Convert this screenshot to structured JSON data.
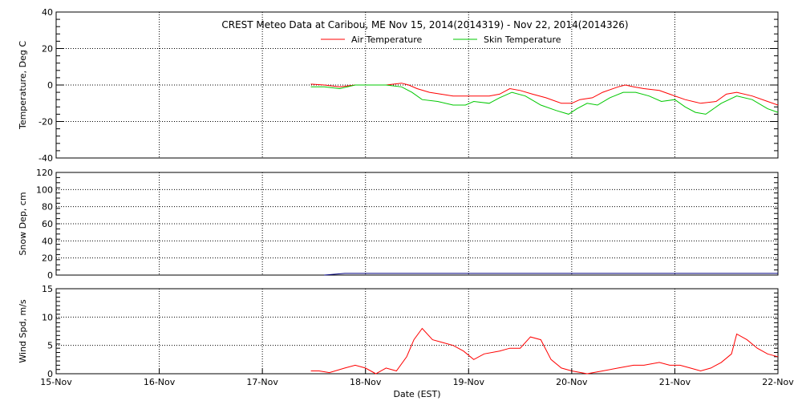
{
  "chart_data": {
    "type": "line",
    "title": "CREST Meteo Data at Caribou, ME   Nov 15, 2014(2014319) - Nov 22, 2014(2014326)",
    "xlabel": "Date (EST)",
    "x_ticks": [
      "15-Nov",
      "16-Nov",
      "17-Nov",
      "18-Nov",
      "19-Nov",
      "20-Nov",
      "21-Nov",
      "22-Nov"
    ],
    "xlim": [
      0,
      7
    ],
    "colors": {
      "air": "#ff0000",
      "skin": "#00c800",
      "snow": "#000080",
      "wind": "#ff0000",
      "frame": "#000000",
      "grid": "#000000"
    },
    "panels": [
      {
        "id": "temperature",
        "ylabel": "Temperature, Deg C",
        "ylim": [
          -40,
          40
        ],
        "y_ticks": [
          "40",
          "20",
          "0",
          "-20",
          "-40"
        ],
        "grid": true,
        "legend": {
          "placement": "top-center"
        },
        "series": [
          {
            "name": "Air Temperature",
            "color": "#ff0000",
            "x": [
              2.47,
              2.6,
              2.75,
              2.9,
              3.0,
              3.2,
              3.35,
              3.42,
              3.5,
              3.62,
              3.85,
              4.0,
              4.2,
              4.3,
              4.4,
              4.5,
              4.62,
              4.75,
              4.9,
              5.0,
              5.08,
              5.2,
              5.3,
              5.45,
              5.52,
              5.6,
              5.7,
              5.85,
              5.95,
              6.1,
              6.25,
              6.4,
              6.5,
              6.6,
              6.75,
              6.9,
              7.0
            ],
            "values": [
              0.5,
              0,
              -1,
              0,
              0,
              0,
              1,
              0,
              -2,
              -4,
              -6,
              -6,
              -6,
              -5,
              -2,
              -3,
              -5,
              -7,
              -10,
              -10,
              -8,
              -7,
              -4,
              -1,
              0,
              -1,
              -2,
              -3,
              -5,
              -8,
              -10,
              -9,
              -5,
              -4,
              -6,
              -9,
              -11
            ]
          },
          {
            "name": "Skin Temperature",
            "color": "#00c800",
            "x": [
              2.47,
              2.6,
              2.75,
              2.9,
              3.0,
              3.2,
              3.35,
              3.45,
              3.55,
              3.7,
              3.85,
              3.97,
              4.05,
              4.2,
              4.3,
              4.42,
              4.55,
              4.7,
              4.85,
              4.97,
              5.05,
              5.15,
              5.25,
              5.37,
              5.5,
              5.62,
              5.75,
              5.87,
              6.0,
              6.1,
              6.2,
              6.3,
              6.45,
              6.6,
              6.75,
              6.9,
              7.0
            ],
            "values": [
              -1,
              -1,
              -2,
              0,
              0,
              0,
              -1,
              -4,
              -8,
              -9,
              -11,
              -11,
              -9,
              -10,
              -7,
              -4,
              -6,
              -11,
              -14,
              -16,
              -13,
              -10,
              -11,
              -7,
              -4,
              -4,
              -6,
              -9,
              -8,
              -12,
              -15,
              -16,
              -10,
              -6,
              -8,
              -13,
              -15
            ]
          }
        ]
      },
      {
        "id": "snow",
        "ylabel": "Snow Dep, cm",
        "ylim": [
          0,
          120
        ],
        "y_ticks": [
          "120",
          "100",
          "80",
          "60",
          "40",
          "20",
          "0"
        ],
        "grid": true,
        "series": [
          {
            "color": "#000080",
            "x": [
              2.6,
              2.8,
              3.0,
              3.2,
              3.5,
              4.0,
              4.5,
              5.0,
              5.5,
              6.0,
              6.5,
              7.0
            ],
            "values": [
              0,
              2,
              2,
              2,
              2,
              2,
              2,
              2,
              2,
              2,
              2,
              2
            ]
          }
        ]
      },
      {
        "id": "wind",
        "ylabel": "Wind Spd, m/s",
        "ylim": [
          0,
          15
        ],
        "y_ticks": [
          "15",
          "10",
          "5",
          "0"
        ],
        "grid": true,
        "series": [
          {
            "color": "#ff0000",
            "x": [
              2.47,
              2.55,
              2.65,
              2.8,
              2.9,
              3.0,
              3.1,
              3.2,
              3.3,
              3.4,
              3.47,
              3.55,
              3.65,
              3.75,
              3.85,
              3.95,
              4.05,
              4.15,
              4.3,
              4.4,
              4.5,
              4.6,
              4.7,
              4.8,
              4.9,
              5.0,
              5.15,
              5.3,
              5.45,
              5.6,
              5.7,
              5.85,
              5.95,
              6.05,
              6.15,
              6.25,
              6.35,
              6.45,
              6.55,
              6.6,
              6.7,
              6.8,
              6.9,
              7.0
            ],
            "values": [
              0.5,
              0.5,
              0.2,
              1,
              1.5,
              1,
              0,
              1,
              0.5,
              3,
              6,
              8,
              6,
              5.5,
              5,
              4,
              2.5,
              3.5,
              4,
              4.5,
              4.5,
              6.5,
              6,
              2.5,
              1,
              0.5,
              0,
              0.5,
              1,
              1.5,
              1.5,
              2,
              1.5,
              1.5,
              1,
              0.5,
              1,
              2,
              3.5,
              7,
              6,
              4.5,
              3.5,
              3
            ]
          }
        ]
      }
    ]
  }
}
